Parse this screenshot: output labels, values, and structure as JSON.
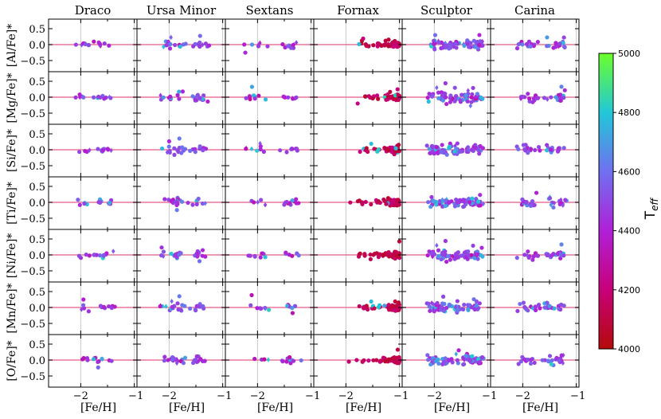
{
  "chart_data": {
    "type": "scatter",
    "galaxies": [
      "Draco",
      "Ursa Minor",
      "Sextans",
      "Fornax",
      "Sculptor",
      "Carina"
    ],
    "rows": [
      "[Al/Fe]*",
      "[Mg/Fe]*",
      "[Si/Fe]*",
      "[Ti/Fe]*",
      "[Ni/Fe]*",
      "[Mn/Fe]*",
      "[O/Fe]*"
    ],
    "xlabel": "[Fe/H]",
    "xlim": [
      -2.6,
      -0.95
    ],
    "ylim": [
      -0.85,
      0.8
    ],
    "yticks": [
      "0.5",
      "0.0",
      "−0.5"
    ],
    "xticks": [
      "−2",
      "−1"
    ],
    "colorbar": {
      "label": "T",
      "label_sub": "eff",
      "min": 4000,
      "max": 5000,
      "ticks": [
        "4000",
        "4200",
        "4400",
        "4600",
        "4800",
        "5000"
      ],
      "colors": [
        "#b50a0a",
        "#c8007a",
        "#b020d8",
        "#7070f0",
        "#20c8d8",
        "#6cff2a"
      ]
    },
    "reference_line_color": "#e8779e",
    "samples": {
      "Draco": {
        "feh": [
          -2.0,
          -1.92,
          -1.7,
          -1.62,
          -1.55,
          -1.45
        ],
        "teff_typical": 4450
      },
      "Ursa Minor": {
        "feh": [
          -2.05,
          -1.9,
          -1.8,
          -1.5,
          -1.4
        ],
        "teff_typical": 4500
      },
      "Sextans": {
        "feh": [
          -2.1,
          -1.9,
          -1.45,
          -1.3
        ],
        "teff_typical": 4450
      },
      "Fornax": {
        "feh": [
          -1.75,
          -1.4,
          -1.15,
          -1.05,
          -1.0
        ],
        "teff_typical": 4100
      },
      "Sculptor": {
        "feh": [
          -2.0,
          -1.8,
          -1.6,
          -1.4,
          -1.2
        ],
        "teff_typical": 4500
      },
      "Carina": {
        "feh": [
          -2.0,
          -1.8,
          -1.5,
          -1.3
        ],
        "teff_typical": 4500
      }
    }
  }
}
